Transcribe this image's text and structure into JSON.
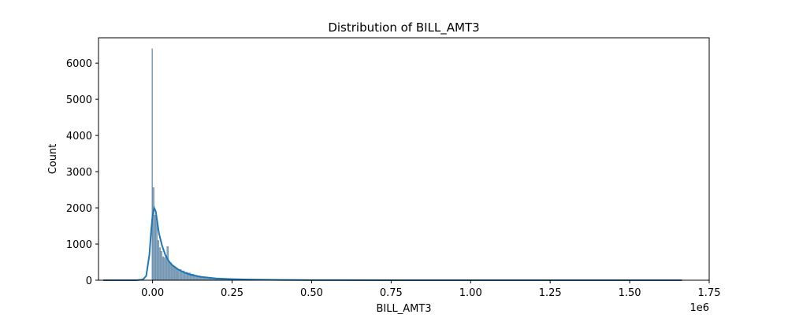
{
  "chart_data": {
    "type": "bar",
    "title": "Distribution of BILL_AMT3",
    "xlabel": "BILL_AMT3",
    "ylabel": "Count",
    "x_offset_text": "1e6",
    "xlim": [
      -0.17,
      1.75
    ],
    "ylim": [
      0,
      6700
    ],
    "x_ticks": [
      0.0,
      0.25,
      0.5,
      0.75,
      1.0,
      1.25,
      1.5,
      1.75
    ],
    "x_tick_labels": [
      "0.00",
      "0.25",
      "0.50",
      "0.75",
      "1.00",
      "1.25",
      "1.50",
      "1.75"
    ],
    "y_ticks": [
      0,
      1000,
      2000,
      3000,
      4000,
      5000,
      6000
    ],
    "y_tick_labels": [
      "0",
      "1000",
      "2000",
      "3000",
      "4000",
      "5000",
      "6000"
    ],
    "bars": {
      "name": "Count",
      "color": "#7496b4",
      "edge_color": "#5b7fa0",
      "x_start": [
        -0.002,
        0.0,
        0.005,
        0.01,
        0.015,
        0.02,
        0.025,
        0.03,
        0.035,
        0.04,
        0.045,
        0.05,
        0.055,
        0.06,
        0.065,
        0.07,
        0.075,
        0.08,
        0.09,
        0.1,
        0.11,
        0.12,
        0.13,
        0.14,
        0.15,
        0.16,
        0.18,
        0.2,
        0.22,
        0.24,
        0.26,
        0.28,
        0.3
      ],
      "x_end": [
        0.0,
        0.005,
        0.01,
        0.015,
        0.02,
        0.025,
        0.03,
        0.035,
        0.04,
        0.045,
        0.05,
        0.055,
        0.06,
        0.065,
        0.07,
        0.075,
        0.08,
        0.09,
        0.1,
        0.11,
        0.12,
        0.13,
        0.14,
        0.15,
        0.16,
        0.18,
        0.2,
        0.22,
        0.24,
        0.26,
        0.28,
        0.3,
        0.35
      ],
      "values": [
        6400,
        2560,
        1800,
        1700,
        1100,
        900,
        800,
        650,
        620,
        680,
        930,
        520,
        480,
        420,
        380,
        360,
        330,
        300,
        260,
        220,
        200,
        170,
        140,
        120,
        100,
        80,
        60,
        45,
        35,
        25,
        18,
        12,
        6
      ]
    },
    "kde": {
      "name": "KDE",
      "color": "#1f77b4",
      "x": [
        -0.155,
        -0.1,
        -0.05,
        -0.03,
        -0.02,
        -0.01,
        -0.005,
        0.0,
        0.005,
        0.01,
        0.015,
        0.02,
        0.03,
        0.04,
        0.05,
        0.06,
        0.08,
        0.1,
        0.12,
        0.15,
        0.2,
        0.25,
        0.3,
        0.4,
        0.5,
        0.6,
        0.8,
        1.0,
        1.2,
        1.4,
        1.6,
        1.664
      ],
      "y": [
        0,
        0,
        0,
        20,
        120,
        700,
        1300,
        1800,
        2000,
        1900,
        1600,
        1300,
        950,
        700,
        540,
        430,
        300,
        210,
        150,
        95,
        50,
        30,
        18,
        8,
        4,
        2,
        1,
        0,
        0,
        0,
        0,
        0
      ]
    }
  }
}
